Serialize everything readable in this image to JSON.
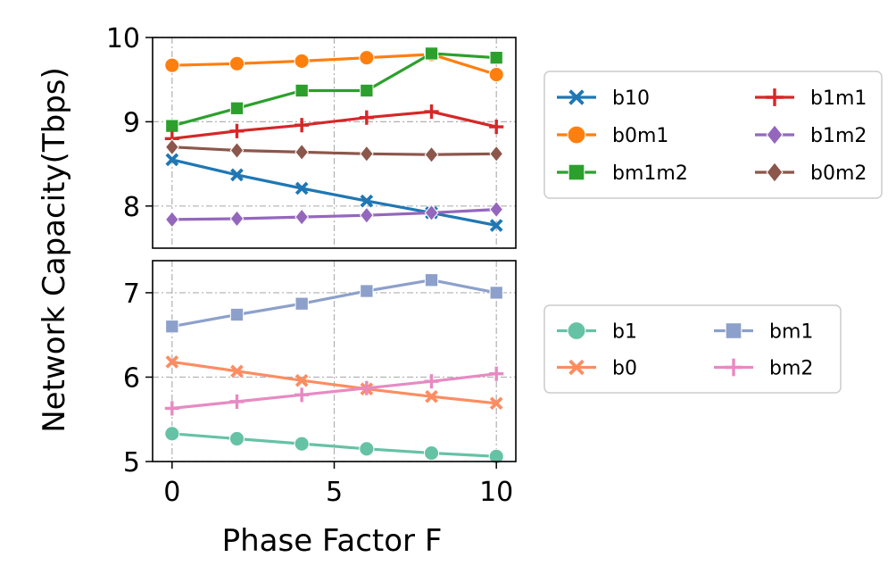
{
  "chart_data": {
    "type": "line",
    "xlabel": "Phase Factor F",
    "ylabel": "Network Capacity(Tbps)",
    "x": [
      0,
      2,
      4,
      6,
      8,
      10
    ],
    "xlim": [
      -0.6,
      10.6
    ],
    "xticks": [
      0,
      5,
      10
    ],
    "xtick_labels": [
      "0",
      "5",
      "10"
    ],
    "grid": true,
    "panels": [
      {
        "name": "top",
        "ylim": [
          7.5,
          10.0
        ],
        "yticks": [
          8,
          9,
          10
        ],
        "ytick_labels": [
          "8",
          "9",
          "10"
        ],
        "legend_columns": 2,
        "legend_placement": "right",
        "series": [
          {
            "name": "b10",
            "color": "#1f77b4",
            "marker": "x",
            "values": [
              8.55,
              8.37,
              8.21,
              8.06,
              7.92,
              7.77
            ]
          },
          {
            "name": "b0m1",
            "color": "#ff7f0e",
            "marker": "circle",
            "values": [
              9.67,
              9.69,
              9.72,
              9.76,
              9.8,
              9.56
            ]
          },
          {
            "name": "bm1m2",
            "color": "#2ca02c",
            "marker": "square",
            "values": [
              8.95,
              9.16,
              9.37,
              9.37,
              9.81,
              9.76
            ]
          },
          {
            "name": "b1m1",
            "color": "#d62728",
            "marker": "plus",
            "values": [
              8.8,
              8.89,
              8.96,
              9.05,
              9.12,
              8.94
            ]
          },
          {
            "name": "b1m2",
            "color": "#9467bd",
            "marker": "diamond",
            "values": [
              7.84,
              7.85,
              7.87,
              7.89,
              7.92,
              7.96
            ]
          },
          {
            "name": "b0m2",
            "color": "#8c564b",
            "marker": "diamond",
            "values": [
              8.7,
              8.66,
              8.64,
              8.62,
              8.61,
              8.62
            ]
          }
        ]
      },
      {
        "name": "bottom",
        "ylim": [
          5.0,
          7.38
        ],
        "yticks": [
          5,
          6,
          7
        ],
        "ytick_labels": [
          "5",
          "6",
          "7"
        ],
        "legend_columns": 2,
        "legend_placement": "right",
        "series": [
          {
            "name": "b1",
            "color": "#66c2a5",
            "marker": "circle",
            "values": [
              5.33,
              5.27,
              5.21,
              5.15,
              5.1,
              5.06
            ]
          },
          {
            "name": "b0",
            "color": "#fc8d62",
            "marker": "x",
            "values": [
              6.18,
              6.07,
              5.96,
              5.86,
              5.77,
              5.69
            ]
          },
          {
            "name": "bm1",
            "color": "#8da0cb",
            "marker": "square",
            "values": [
              6.6,
              6.74,
              6.87,
              7.02,
              7.15,
              7.0
            ]
          },
          {
            "name": "bm2",
            "color": "#e78ac3",
            "marker": "plus",
            "values": [
              5.63,
              5.71,
              5.79,
              5.87,
              5.95,
              6.04
            ]
          }
        ]
      }
    ]
  }
}
